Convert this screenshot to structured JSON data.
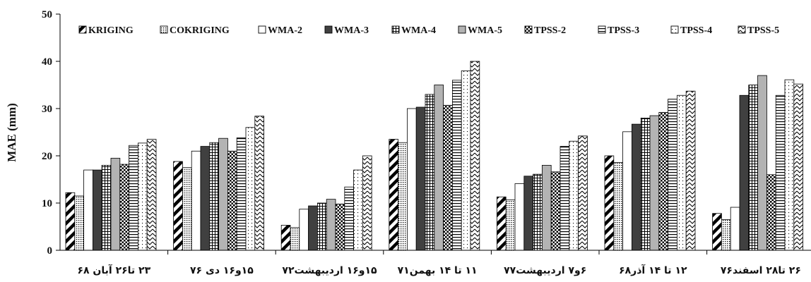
{
  "chart_data": {
    "type": "bar",
    "ylabel": "MAE (mm)",
    "xlabel": "",
    "title": "",
    "ylim": [
      0,
      50
    ],
    "yticks": [
      0,
      10,
      20,
      30,
      40,
      50
    ],
    "grid": false,
    "legend_position": "top",
    "categories": [
      "۲۳ تا۲۶ آبان ۶۸",
      "۱۵و۱۶ دی ۷۶",
      "۱۵و۱۶ اردیبهشت۷۲",
      "۱۱ تا ۱۴ بهمن۷۱",
      "۶و۷ اردیبهشت۷۷",
      "۱۲ تا ۱۴ آذر۶۸",
      "۲۶ تا۲۸ اسفند۷۶"
    ],
    "series": [
      {
        "name": "KRIGING",
        "pattern": "diag",
        "values": [
          12.2,
          18.8,
          5.3,
          23.5,
          11.3,
          20.0,
          7.8
        ]
      },
      {
        "name": "COKRIGING",
        "pattern": "dots",
        "values": [
          11.5,
          17.5,
          4.8,
          22.8,
          10.7,
          18.6,
          6.5
        ]
      },
      {
        "name": "WMA-2",
        "pattern": "white",
        "values": [
          17.0,
          21.0,
          8.7,
          30.0,
          14.1,
          25.1,
          9.1
        ]
      },
      {
        "name": "WMA-3",
        "pattern": "dark",
        "values": [
          17.0,
          22.0,
          9.4,
          30.3,
          15.7,
          26.7,
          32.8
        ]
      },
      {
        "name": "WMA-4",
        "pattern": "grid",
        "values": [
          18.0,
          22.8,
          10.0,
          33.0,
          16.1,
          28.0,
          35.0
        ]
      },
      {
        "name": "WMA-5",
        "pattern": "gray",
        "values": [
          19.5,
          23.7,
          10.8,
          35.0,
          18.0,
          28.5,
          37.0
        ]
      },
      {
        "name": "TPSS-2",
        "pattern": "check",
        "values": [
          18.2,
          21.0,
          9.8,
          30.7,
          16.6,
          29.2,
          16.0
        ]
      },
      {
        "name": "TPSS-3",
        "pattern": "hlines",
        "values": [
          22.2,
          23.8,
          13.4,
          36.0,
          22.0,
          32.0,
          32.8
        ]
      },
      {
        "name": "TPSS-4",
        "pattern": "lightdots",
        "values": [
          22.7,
          26.0,
          17.0,
          38.0,
          23.1,
          32.8,
          36.1
        ]
      },
      {
        "name": "TPSS-5",
        "pattern": "zigzag",
        "values": [
          23.5,
          28.4,
          20.0,
          40.0,
          24.2,
          33.7,
          35.2
        ]
      }
    ]
  }
}
